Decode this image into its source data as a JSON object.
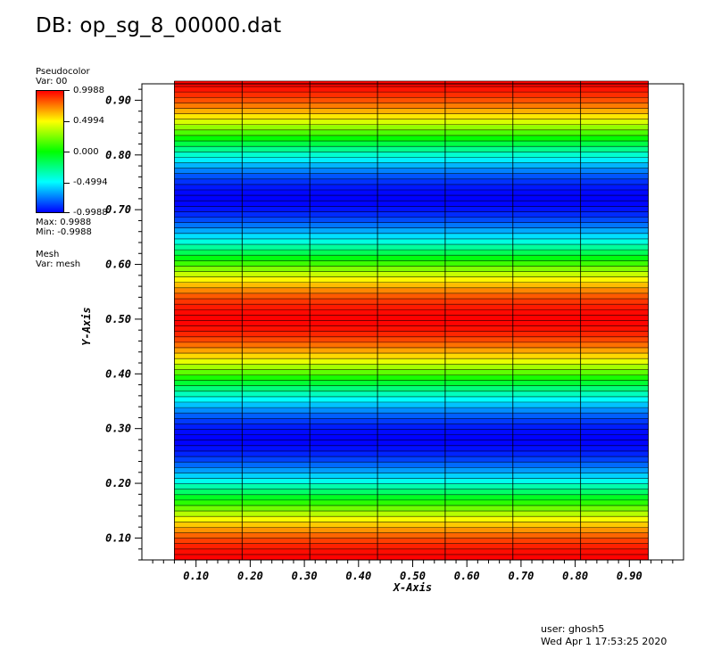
{
  "header": {
    "title": "DB: op_sg_8_00000.dat"
  },
  "legend": {
    "plot_type": "Pseudocolor",
    "var": "Var: 00",
    "ticks": [
      "0.9988",
      "0.4994",
      "0.000",
      "-0.4994",
      "-0.9988"
    ],
    "max_label": "Max:  0.9988",
    "min_label": "Min: -0.9988",
    "mesh_type": "Mesh",
    "mesh_var": "Var: mesh",
    "colormap": [
      "#ff0000",
      "#ffff00",
      "#00ff00",
      "#00ffff",
      "#0000ff"
    ]
  },
  "footer": {
    "user": "user: ghosh5",
    "date": "Wed Apr  1 17:53:25 2020"
  },
  "chart_data": {
    "type": "heatmap",
    "title": "DB: op_sg_8_00000.dat",
    "xlabel": "X-Axis",
    "ylabel": "Y-Axis",
    "xlim": [
      0.0,
      1.0
    ],
    "ylim": [
      0.06,
      0.93
    ],
    "data_x_range": [
      0.06,
      0.935
    ],
    "data_y_range": [
      0.06,
      0.935
    ],
    "x_ticks": [
      "0.10",
      "0.20",
      "0.30",
      "0.40",
      "0.50",
      "0.60",
      "0.70",
      "0.80",
      "0.90"
    ],
    "y_ticks": [
      "0.10",
      "0.20",
      "0.30",
      "0.40",
      "0.50",
      "0.60",
      "0.70",
      "0.80",
      "0.90"
    ],
    "value_range": [
      -0.9988,
      0.9988
    ],
    "field": "values vary with y only: maxima near y=0.06, 0.50, 0.93; minima near y=0.28, 0.72",
    "mesh_columns": 7,
    "mesh_rows": 88,
    "grid": false
  }
}
